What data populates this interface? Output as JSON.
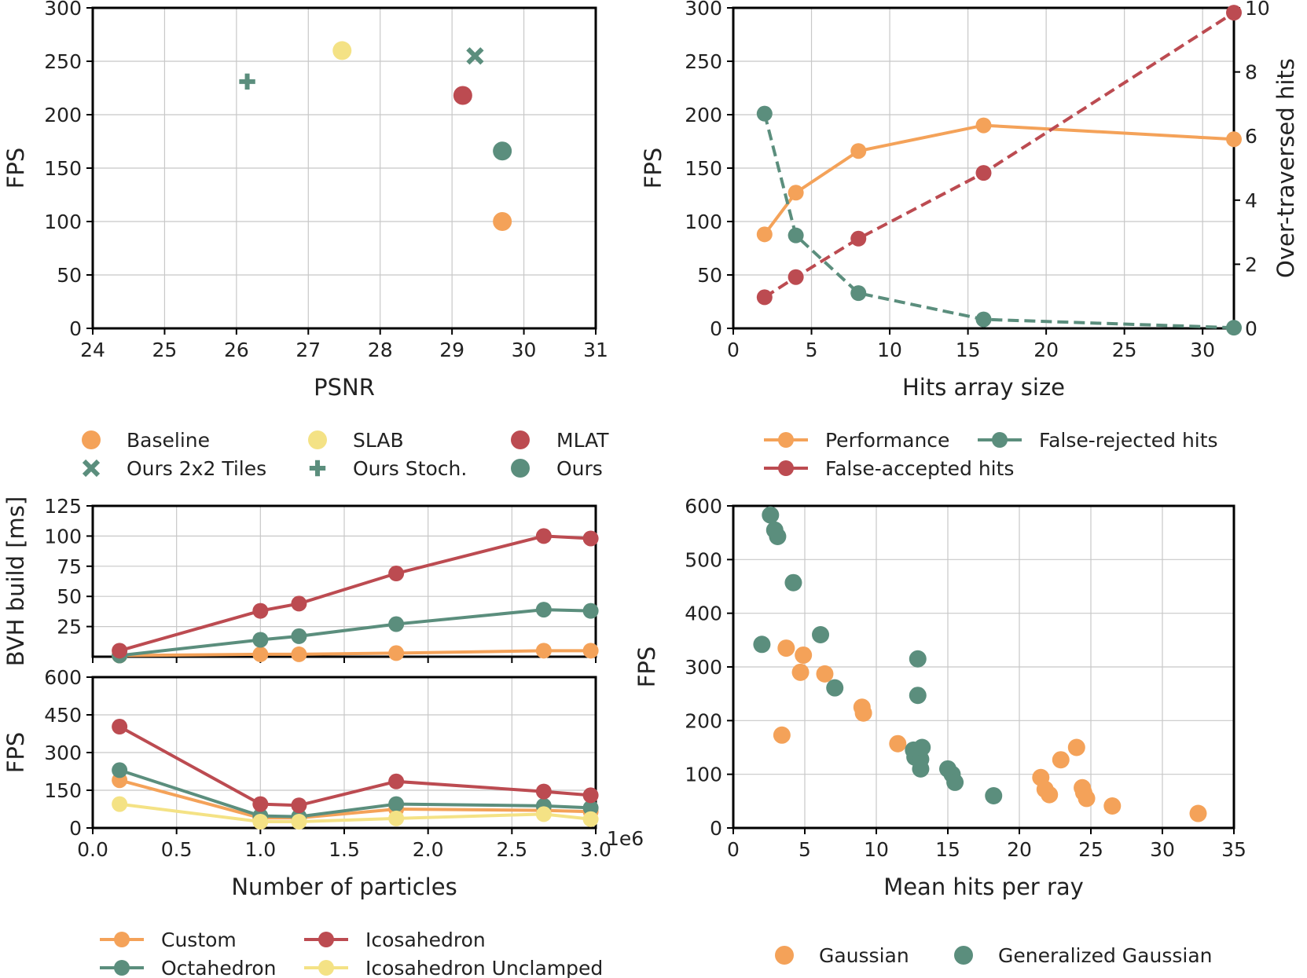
{
  "chart_data": [
    {
      "id": "tl",
      "type": "scatter",
      "xlabel": "PSNR",
      "ylabel": "FPS",
      "xlim": [
        24,
        31
      ],
      "ylim": [
        0,
        300
      ],
      "xticks": [
        24,
        25,
        26,
        27,
        28,
        29,
        30,
        31
      ],
      "yticks": [
        0,
        50,
        100,
        150,
        200,
        250,
        300
      ],
      "xtick_labels": [
        "24",
        "25",
        "26",
        "27",
        "28",
        "29",
        "30",
        "31"
      ],
      "ytick_labels": [
        "0",
        "50",
        "100",
        "150",
        "200",
        "250",
        "300"
      ],
      "series": [
        {
          "name": "Baseline",
          "marker": "circle",
          "color": "#f4a259",
          "points": [
            [
              29.7,
              100
            ]
          ]
        },
        {
          "name": "SLAB",
          "marker": "circle",
          "color": "#f4e285",
          "points": [
            [
              27.47,
              260
            ]
          ]
        },
        {
          "name": "MLAT",
          "marker": "circle",
          "color": "#bc4b51",
          "points": [
            [
              29.15,
              218
            ]
          ]
        },
        {
          "name": "Ours 2x2 Tiles",
          "marker": "x",
          "color": "#5b8e7d",
          "points": [
            [
              29.32,
              255
            ]
          ]
        },
        {
          "name": "Ours Stoch.",
          "marker": "plus",
          "color": "#5b8e7d",
          "points": [
            [
              26.15,
              231
            ]
          ]
        },
        {
          "name": "Ours",
          "marker": "circle",
          "color": "#5b8e7d",
          "points": [
            [
              29.7,
              166
            ]
          ]
        }
      ]
    },
    {
      "id": "tr",
      "type": "line",
      "xlabel": "Hits array size",
      "ylabel": "FPS",
      "y2label": "Over-traversed hits",
      "xlim": [
        0,
        32
      ],
      "ylim": [
        0,
        300
      ],
      "y2lim": [
        0,
        10
      ],
      "xticks": [
        0,
        5,
        10,
        15,
        20,
        25,
        30
      ],
      "yticks": [
        0,
        50,
        100,
        150,
        200,
        250,
        300
      ],
      "y2ticks": [
        0,
        2,
        4,
        6,
        8,
        10
      ],
      "xtick_labels": [
        "0",
        "5",
        "10",
        "15",
        "20",
        "25",
        "30"
      ],
      "ytick_labels": [
        "0",
        "50",
        "100",
        "150",
        "200",
        "250",
        "300"
      ],
      "y2tick_labels": [
        "0",
        "2",
        "4",
        "6",
        "8",
        "10"
      ],
      "series": [
        {
          "name": "Performance",
          "axis": "left",
          "dashed": false,
          "color": "#f4a259",
          "x": [
            2,
            4,
            8,
            16,
            32
          ],
          "y": [
            88,
            127,
            166,
            190,
            177
          ]
        },
        {
          "name": "False-accepted hits",
          "axis": "right",
          "dashed": true,
          "color": "#bc4b51",
          "x": [
            2,
            4,
            8,
            16,
            32
          ],
          "y": [
            0.97,
            1.6,
            2.8,
            4.85,
            9.85
          ]
        },
        {
          "name": "False-rejected hits",
          "axis": "right",
          "dashed": true,
          "color": "#5b8e7d",
          "x": [
            2,
            4,
            8,
            16,
            32
          ],
          "y": [
            6.7,
            2.9,
            1.1,
            0.28,
            0.02
          ]
        }
      ]
    },
    {
      "id": "bl_top",
      "type": "line",
      "xlabel": "",
      "ylabel": "BVH build [ms]",
      "xlim": [
        0,
        3
      ],
      "ylim": [
        0,
        125
      ],
      "yticks": [
        25,
        50,
        75,
        100,
        125
      ],
      "ytick_labels": [
        "25",
        "50",
        "75",
        "100",
        "125"
      ],
      "series": [
        {
          "name": "Custom",
          "color": "#f4a259",
          "x": [
            0.16,
            1.0,
            1.23,
            1.81,
            2.69,
            2.97
          ],
          "y": [
            1,
            2,
            2,
            3,
            5,
            5
          ]
        },
        {
          "name": "Octahedron",
          "color": "#5b8e7d",
          "x": [
            0.16,
            1.0,
            1.23,
            1.81,
            2.69,
            2.97
          ],
          "y": [
            1,
            14,
            17,
            27,
            39,
            38
          ]
        },
        {
          "name": "Icosahedron",
          "color": "#bc4b51",
          "x": [
            0.16,
            1.0,
            1.23,
            1.81,
            2.69,
            2.97
          ],
          "y": [
            5,
            38,
            44,
            69,
            100,
            98
          ]
        }
      ]
    },
    {
      "id": "bl_bot",
      "type": "line",
      "xlabel": "Number of particles",
      "ylabel": "FPS",
      "x_offset_label": "1e6",
      "xlim": [
        0,
        3
      ],
      "ylim": [
        0,
        600
      ],
      "xticks": [
        0.0,
        0.5,
        1.0,
        1.5,
        2.0,
        2.5,
        3.0
      ],
      "xtick_labels": [
        "0.0",
        "0.5",
        "1.0",
        "1.5",
        "2.0",
        "2.5",
        "3.0"
      ],
      "yticks": [
        0,
        150,
        300,
        450,
        600
      ],
      "ytick_labels": [
        "0",
        "150",
        "300",
        "450",
        "600"
      ],
      "series": [
        {
          "name": "Custom",
          "color": "#f4a259",
          "x": [
            0.16,
            1.0,
            1.23,
            1.81,
            2.69,
            2.97
          ],
          "y": [
            190,
            40,
            40,
            75,
            70,
            65
          ]
        },
        {
          "name": "Octahedron",
          "color": "#5b8e7d",
          "x": [
            0.16,
            1.0,
            1.23,
            1.81,
            2.69,
            2.97
          ],
          "y": [
            230,
            48,
            45,
            95,
            88,
            80
          ]
        },
        {
          "name": "Icosahedron",
          "color": "#bc4b51",
          "x": [
            0.16,
            1.0,
            1.23,
            1.81,
            2.69,
            2.97
          ],
          "y": [
            403,
            95,
            90,
            185,
            145,
            130
          ]
        },
        {
          "name": "Icosahedron Unclamped",
          "color": "#f4e285",
          "x": [
            0.16,
            1.0,
            1.23,
            1.81,
            2.69,
            2.97
          ],
          "y": [
            95,
            25,
            25,
            38,
            55,
            35
          ]
        }
      ]
    },
    {
      "id": "br",
      "type": "scatter",
      "xlabel": "Mean hits per ray",
      "ylabel": "FPS",
      "xlim": [
        0,
        35
      ],
      "ylim": [
        0,
        600
      ],
      "xticks": [
        0,
        5,
        10,
        15,
        20,
        25,
        30,
        35
      ],
      "xtick_labels": [
        "0",
        "5",
        "10",
        "15",
        "20",
        "25",
        "30",
        "35"
      ],
      "yticks": [
        0,
        100,
        200,
        300,
        400,
        500,
        600
      ],
      "ytick_labels": [
        "0",
        "100",
        "200",
        "300",
        "400",
        "500",
        "600"
      ],
      "series": [
        {
          "name": "Gaussian",
          "marker": "circle",
          "color": "#f4a259",
          "points": [
            [
              3.7,
              335
            ],
            [
              4.9,
              322
            ],
            [
              4.7,
              290
            ],
            [
              6.4,
              287
            ],
            [
              9.0,
              225
            ],
            [
              9.1,
              214
            ],
            [
              3.4,
              173
            ],
            [
              11.5,
              157
            ],
            [
              21.5,
              94
            ],
            [
              21.8,
              72
            ],
            [
              22.1,
              62
            ],
            [
              22.9,
              127
            ],
            [
              24.0,
              150
            ],
            [
              24.4,
              75
            ],
            [
              24.5,
              66
            ],
            [
              24.7,
              55
            ],
            [
              26.5,
              41
            ],
            [
              32.5,
              27
            ]
          ]
        },
        {
          "name": "Generalized Gaussian",
          "marker": "circle",
          "color": "#5b8e7d",
          "points": [
            [
              2.6,
              583
            ],
            [
              2.9,
              555
            ],
            [
              3.1,
              543
            ],
            [
              4.2,
              457
            ],
            [
              2.0,
              342
            ],
            [
              6.1,
              360
            ],
            [
              7.1,
              261
            ],
            [
              12.9,
              315
            ],
            [
              12.9,
              247
            ],
            [
              12.6,
              145
            ],
            [
              12.7,
              132
            ],
            [
              13.1,
              128
            ],
            [
              13.2,
              150
            ],
            [
              13.1,
              110
            ],
            [
              15.0,
              110
            ],
            [
              15.3,
              100
            ],
            [
              15.5,
              85
            ],
            [
              18.2,
              60
            ]
          ]
        }
      ]
    }
  ],
  "legends": {
    "tl": [
      "Baseline",
      "SLAB",
      "MLAT",
      "Ours 2x2 Tiles",
      "Ours Stoch.",
      "Ours"
    ],
    "tr": [
      "Performance",
      "False-rejected hits",
      "False-accepted hits"
    ],
    "bl": [
      "Custom",
      "Icosahedron",
      "Octahedron",
      "Icosahedron Unclamped"
    ],
    "br": [
      "Gaussian",
      "Generalized Gaussian"
    ]
  }
}
